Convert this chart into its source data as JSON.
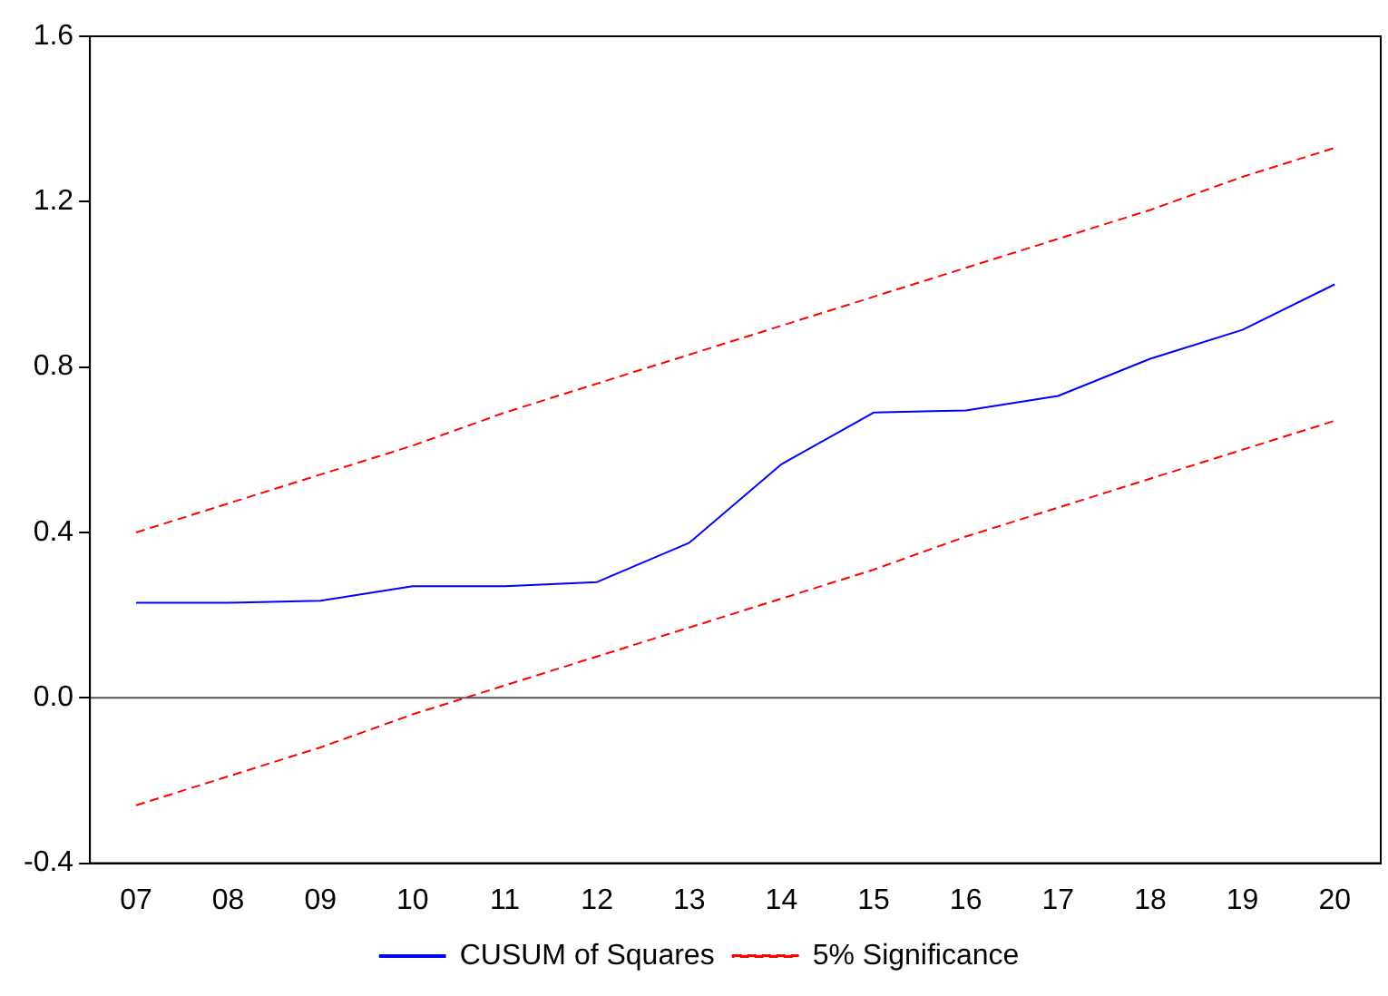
{
  "chart_data": {
    "type": "line",
    "categories": [
      "07",
      "08",
      "09",
      "10",
      "11",
      "12",
      "13",
      "14",
      "15",
      "16",
      "17",
      "18",
      "19",
      "20"
    ],
    "series": [
      {
        "name": "CUSUM of Squares",
        "color": "#0000ff",
        "line_style": "solid",
        "values": [
          0.23,
          0.23,
          0.235,
          0.27,
          0.27,
          0.28,
          0.375,
          0.565,
          0.69,
          0.695,
          0.73,
          0.82,
          0.89,
          1.0
        ]
      },
      {
        "name": "5% Significance",
        "color": "#ff0000",
        "line_style": "dashed",
        "values": [
          0.4,
          0.47,
          0.54,
          0.61,
          0.69,
          0.76,
          0.83,
          0.9,
          0.97,
          1.04,
          1.11,
          1.18,
          1.26,
          1.33
        ]
      },
      {
        "color": "#ff0000",
        "line_style": "dashed",
        "values": [
          -0.26,
          -0.19,
          -0.12,
          -0.04,
          0.03,
          0.1,
          0.17,
          0.24,
          0.31,
          0.39,
          0.46,
          0.53,
          0.6,
          0.67
        ]
      }
    ],
    "ylim": [
      -0.4,
      1.6
    ],
    "yticks": [
      {
        "value": -0.4,
        "label": "-0.4"
      },
      {
        "value": 0,
        "label": "0.0"
      },
      0.4,
      0.8,
      1.2,
      1.6
    ],
    "ref_lines": [
      {
        "axis": "y",
        "value": 0,
        "color": "#555555"
      }
    ],
    "grid": false,
    "legend": "bottom",
    "marker": "none"
  }
}
